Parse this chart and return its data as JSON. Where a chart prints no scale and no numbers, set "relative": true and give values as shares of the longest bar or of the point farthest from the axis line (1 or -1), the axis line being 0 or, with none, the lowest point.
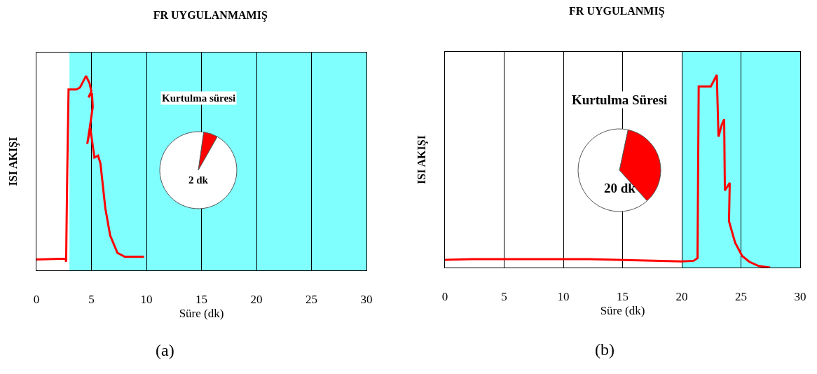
{
  "chart_data": [
    {
      "type": "line",
      "title": "FR UYGULANMAMIŞ",
      "xlabel": "Süre (dk)",
      "ylabel": "ISI AKIŞI",
      "relative": true,
      "tick_labels": "x",
      "grid": "x",
      "xlim": [
        0,
        30
      ],
      "xticks": [
        0,
        5,
        10,
        15,
        20,
        25,
        30
      ],
      "x": [
        0,
        2.64,
        2.7,
        2.79,
        2.92,
        3.63,
        3.96,
        4.51,
        4.84,
        4.99,
        4.73,
        5.05,
        5.12,
        4.84,
        4.62,
        4.9,
        5.27,
        5.6,
        5.82,
        6.26,
        6.7,
        7.36,
        8.02,
        8.9,
        9.78
      ],
      "series": [
        {
          "color": "#ff0000",
          "values": [
            0.056,
            0.06,
            0.044,
            0.46,
            0.93,
            0.93,
            0.94,
            1.0,
            0.96,
            0.92,
            0.89,
            0.91,
            0.84,
            0.73,
            0.65,
            0.73,
            0.58,
            0.59,
            0.55,
            0.32,
            0.18,
            0.09,
            0.07,
            0.07,
            0.07
          ]
        }
      ],
      "bands": [
        {
          "axis": "x",
          "from": 3,
          "to": 30,
          "color": "#80ffff"
        }
      ],
      "annotations": [
        "(a)"
      ]
    },
    {
      "type": "pie",
      "categories": [
        null,
        null
      ],
      "values": [
        6,
        94
      ],
      "colors": [
        "#ff0000",
        "#ffffff"
      ],
      "annotations": [
        "Kurtulma süresi",
        "2 dk"
      ]
    },
    {
      "type": "line",
      "title": "FR UYGULANMIŞ",
      "xlabel": "Süre (dk)",
      "ylabel": "ISI AKIŞI",
      "relative": true,
      "tick_labels": "x",
      "grid": "x",
      "xlim": [
        0,
        30
      ],
      "xticks": [
        0,
        5,
        10,
        15,
        20,
        25,
        30
      ],
      "x": [
        0,
        2.21,
        12.2,
        20.0,
        21.0,
        21.33,
        21.43,
        22.45,
        22.96,
        23.1,
        23.37,
        23.58,
        23.64,
        24.05,
        23.99,
        24.5,
        25.1,
        25.7,
        26.5,
        27.46
      ],
      "series": [
        {
          "color": "#ff0000",
          "values": [
            0.04,
            0.044,
            0.044,
            0.032,
            0.035,
            0.049,
            0.94,
            0.94,
            1.0,
            0.68,
            0.74,
            0.77,
            0.4,
            0.44,
            0.24,
            0.13,
            0.06,
            0.03,
            0.008,
            0
          ]
        }
      ],
      "bands": [
        {
          "axis": "x",
          "from": 20,
          "to": 30,
          "color": "#80ffff"
        }
      ],
      "annotations": [
        "(b)"
      ]
    },
    {
      "type": "pie",
      "categories": [
        null,
        null
      ],
      "values": [
        35,
        65
      ],
      "colors": [
        "#ff0000",
        "#ffffff"
      ],
      "annotations": [
        "Kurtulma Süresi",
        "20 dk"
      ]
    }
  ]
}
